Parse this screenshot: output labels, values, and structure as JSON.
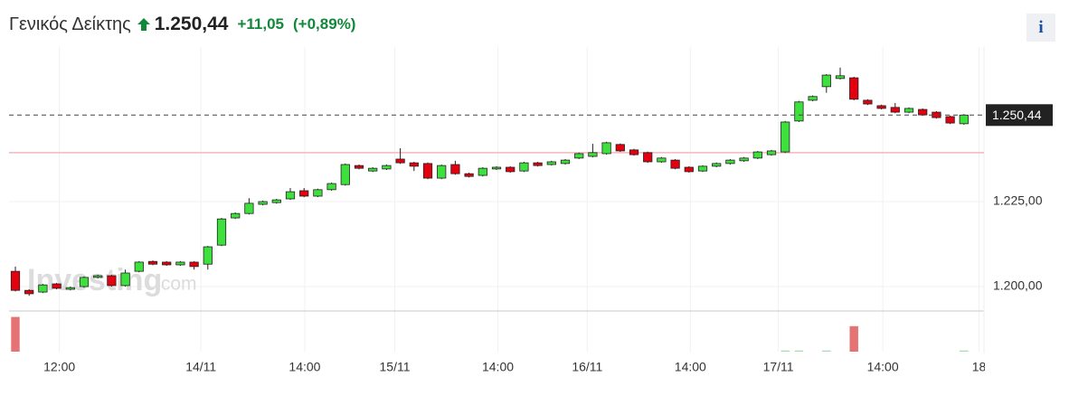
{
  "header": {
    "title": "Γενικός Δείκτης",
    "change": {
      "value": 11.05,
      "label": "+11,05"
    },
    "change_pct": {
      "value": 0.89,
      "label": "(+0,89%)"
    },
    "info": "i"
  },
  "chart_data": {
    "type": "candlestick",
    "open": [
      1204.5,
      1198.9,
      1198.4,
      1200.8,
      1199.2,
      1200.0,
      1202.7,
      1203.2,
      1200.3,
      1204.5,
      1207.4,
      1207.2,
      1206.4,
      1207.2,
      1206.6,
      1212.2,
      1220.2,
      1221.5,
      1224.2,
      1224.7,
      1225.8,
      1228.2,
      1226.6,
      1228.5,
      1230.0,
      1235.6,
      1234.0,
      1234.6,
      1237.5,
      1236.4,
      1236.2,
      1231.9,
      1235.9,
      1233.2,
      1232.7,
      1234.6,
      1235.1,
      1234.0,
      1236.4,
      1235.9,
      1236.2,
      1237.8,
      1238.3,
      1239.1,
      1241.8,
      1240.2,
      1239.4,
      1236.7,
      1237.2,
      1235.1,
      1234.0,
      1235.4,
      1236.2,
      1237.0,
      1237.8,
      1238.8,
      1239.6,
      1248.7,
      1254.8,
      1258.8,
      1261.2,
      1261.4,
      1254.8,
      1253.2,
      1252.7,
      1251.3,
      1252.1,
      1251.3,
      1250.0,
      1247.9
    ],
    "high": [
      1205.9,
      1199.2,
      1200.8,
      1201.1,
      1200.0,
      1203.0,
      1203.5,
      1203.5,
      1205.0,
      1207.5,
      1207.7,
      1207.5,
      1207.5,
      1207.5,
      1212.0,
      1220.2,
      1221.8,
      1226.0,
      1225.3,
      1225.8,
      1229.0,
      1229.0,
      1228.8,
      1230.6,
      1236.2,
      1235.9,
      1235.1,
      1235.9,
      1240.7,
      1236.7,
      1236.5,
      1235.9,
      1237.0,
      1233.5,
      1235.1,
      1235.4,
      1235.4,
      1236.7,
      1236.7,
      1237.0,
      1237.5,
      1239.4,
      1242.0,
      1242.6,
      1242.1,
      1240.5,
      1239.7,
      1238.1,
      1237.5,
      1235.4,
      1235.7,
      1236.5,
      1237.5,
      1238.1,
      1239.9,
      1240.2,
      1248.7,
      1254.6,
      1256.2,
      1262.5,
      1264.4,
      1261.7,
      1255.1,
      1253.5,
      1254.0,
      1252.7,
      1252.4,
      1251.6,
      1250.3,
      1250.7
    ],
    "low": [
      1198.6,
      1197.3,
      1198.1,
      1199.2,
      1198.9,
      1199.7,
      1202.4,
      1200.0,
      1200.0,
      1204.2,
      1206.3,
      1206.1,
      1206.1,
      1205.0,
      1205.0,
      1211.9,
      1219.9,
      1221.2,
      1223.9,
      1224.4,
      1225.5,
      1226.3,
      1226.3,
      1228.2,
      1229.7,
      1234.5,
      1233.7,
      1234.3,
      1236.1,
      1234.0,
      1231.6,
      1231.6,
      1232.9,
      1232.1,
      1232.4,
      1234.3,
      1233.5,
      1233.7,
      1235.3,
      1235.6,
      1235.9,
      1237.5,
      1238.0,
      1238.8,
      1239.6,
      1238.5,
      1236.4,
      1236.4,
      1234.5,
      1233.5,
      1233.7,
      1235.1,
      1235.9,
      1236.7,
      1237.5,
      1238.5,
      1239.3,
      1248.4,
      1254.5,
      1257.0,
      1260.9,
      1254.8,
      1253.4,
      1252.1,
      1251.0,
      1251.0,
      1250.2,
      1249.4,
      1247.8,
      1247.6
    ],
    "close": [
      1198.9,
      1197.9,
      1200.5,
      1199.5,
      1199.7,
      1202.7,
      1203.2,
      1200.3,
      1204.0,
      1207.2,
      1206.6,
      1206.4,
      1207.2,
      1205.9,
      1211.7,
      1219.9,
      1221.5,
      1224.5,
      1225.0,
      1225.5,
      1227.9,
      1226.6,
      1228.5,
      1230.3,
      1235.9,
      1234.8,
      1234.8,
      1235.6,
      1236.4,
      1235.4,
      1231.9,
      1235.6,
      1233.2,
      1232.4,
      1234.8,
      1235.1,
      1233.8,
      1236.4,
      1235.6,
      1236.7,
      1237.2,
      1239.1,
      1239.4,
      1242.3,
      1239.9,
      1238.8,
      1236.7,
      1237.8,
      1234.8,
      1233.8,
      1235.4,
      1236.2,
      1237.2,
      1237.8,
      1239.6,
      1239.9,
      1248.4,
      1254.3,
      1255.9,
      1262.2,
      1262.0,
      1255.1,
      1253.7,
      1252.4,
      1251.3,
      1252.4,
      1250.5,
      1249.7,
      1248.1,
      1250.44
    ],
    "volume": [
      30,
      0,
      0,
      0,
      0,
      0,
      0,
      0,
      0,
      0,
      0,
      0,
      0,
      0,
      0,
      0,
      0,
      0,
      0,
      0,
      0,
      0,
      0,
      0,
      0,
      0,
      0,
      0,
      0,
      0,
      0,
      0,
      0,
      0,
      0,
      0,
      0,
      0,
      0,
      0,
      0,
      0,
      0,
      0,
      0,
      0,
      0,
      0,
      0,
      0,
      0,
      0,
      0,
      0,
      0,
      0,
      1,
      1,
      0,
      1,
      0,
      22,
      0,
      0,
      0,
      0,
      0,
      0,
      0,
      1
    ],
    "volume_lim": [
      0,
      32
    ],
    "up_color": "#3ee03e",
    "down_color": "#e3000f",
    "volume_up_color": "#a6dcb6",
    "volume_down_color": "#e57373",
    "xlim": [
      -0.46,
      70.46
    ],
    "xticks": [
      {
        "value": 3.2,
        "label": "12:00"
      },
      {
        "value": 13.5,
        "label": "14/11"
      },
      {
        "value": 21.05,
        "label": "14:00"
      },
      {
        "value": 27.6,
        "label": "15/11"
      },
      {
        "value": 35.1,
        "label": "14:00"
      },
      {
        "value": 41.6,
        "label": "16/11"
      },
      {
        "value": 49.1,
        "label": "14:00"
      },
      {
        "value": 55.5,
        "label": "17/11"
      },
      {
        "value": 63.1,
        "label": "14:00"
      },
      {
        "value": 70.1,
        "label": "18"
      }
    ],
    "ylim": [
      1193.1,
      1267.8
    ],
    "yticks": [
      {
        "value": 1200,
        "label": "1.200,00"
      },
      {
        "value": 1225,
        "label": "1.225,00"
      }
    ],
    "last_price": {
      "value": 1250.44,
      "label": "1.250,44"
    },
    "previous_close": 1239.39,
    "watermark": "Investing",
    "watermark_suffix": ".com",
    "grid": true
  }
}
